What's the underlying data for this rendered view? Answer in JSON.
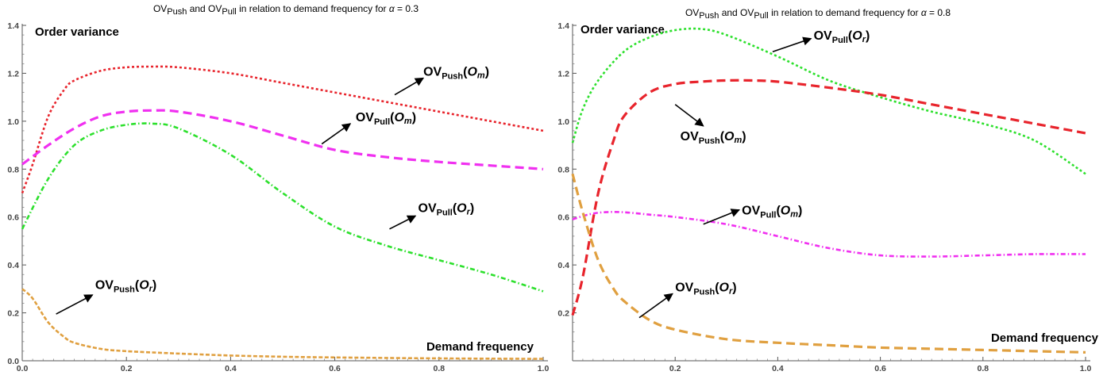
{
  "chart_data": [
    {
      "type": "line",
      "title_parts": [
        "OV",
        "Push",
        " and OV",
        "Pull",
        " in relation to demand frequency for ",
        "α",
        " = 0.3"
      ],
      "xlabel": "Demand frequency",
      "ylabel": "Order variance",
      "xlim": [
        0,
        1.0
      ],
      "ylim": [
        0,
        1.4
      ],
      "xticks": [
        "0.0",
        "0.2",
        "0.4",
        "0.6",
        "0.8",
        "1.0"
      ],
      "yticks": [
        "0.0",
        "0.2",
        "0.4",
        "0.6",
        "0.8",
        "1.0",
        "1.2",
        "1.4"
      ],
      "series": [
        {
          "name": "OVPush(Om)",
          "name_main": "OV",
          "name_sub": "Push",
          "name_arg": "O",
          "name_argsub": "m",
          "color": "#e8242c",
          "dash": "3,3",
          "x": [
            0,
            0.02,
            0.05,
            0.08,
            0.1,
            0.15,
            0.2,
            0.25,
            0.3,
            0.4,
            0.5,
            0.6,
            0.7,
            0.8,
            0.9,
            1.0
          ],
          "y": [
            0.7,
            0.82,
            1.02,
            1.13,
            1.17,
            1.21,
            1.225,
            1.228,
            1.225,
            1.2,
            1.16,
            1.12,
            1.08,
            1.04,
            1.0,
            0.96
          ]
        },
        {
          "name": "OVPull(Om)",
          "name_main": "OV",
          "name_sub": "Pull",
          "name_arg": "O",
          "name_argsub": "m",
          "color": "#f030f0",
          "dash": "11,6",
          "x": [
            0,
            0.05,
            0.1,
            0.15,
            0.2,
            0.25,
            0.3,
            0.4,
            0.5,
            0.6,
            0.7,
            0.8,
            0.9,
            1.0
          ],
          "y": [
            0.82,
            0.9,
            0.97,
            1.02,
            1.04,
            1.045,
            1.04,
            1.0,
            0.94,
            0.88,
            0.85,
            0.83,
            0.815,
            0.8
          ]
        },
        {
          "name": "OVPull(Or)",
          "name_main": "OV",
          "name_sub": "Pull",
          "name_arg": "O",
          "name_argsub": "r",
          "color": "#2de02d",
          "dash": "6,3,1.5,3",
          "x": [
            0,
            0.05,
            0.1,
            0.15,
            0.2,
            0.25,
            0.3,
            0.4,
            0.5,
            0.6,
            0.7,
            0.8,
            0.9,
            1.0
          ],
          "y": [
            0.55,
            0.76,
            0.9,
            0.96,
            0.985,
            0.99,
            0.97,
            0.86,
            0.7,
            0.56,
            0.48,
            0.42,
            0.36,
            0.29
          ]
        },
        {
          "name": "OVPush(Or)",
          "name_main": "OV",
          "name_sub": "Push",
          "name_arg": "O",
          "name_argsub": "r",
          "color": "#e0a040",
          "dash": "5,2.5",
          "x": [
            0,
            0.02,
            0.05,
            0.08,
            0.1,
            0.15,
            0.2,
            0.3,
            0.4,
            0.5,
            0.6,
            0.8,
            1.0
          ],
          "y": [
            0.3,
            0.26,
            0.16,
            0.1,
            0.075,
            0.05,
            0.04,
            0.03,
            0.022,
            0.017,
            0.014,
            0.01,
            0.008
          ]
        }
      ],
      "annotations": [
        {
          "series": 0,
          "tx": 0.77,
          "ty": 1.19,
          "ax": 0.77,
          "ay": 1.18,
          "hx": 0.715,
          "hy": 1.11
        },
        {
          "series": 1,
          "tx": 0.64,
          "ty": 1.0,
          "ax": 0.63,
          "ay": 0.99,
          "hx": 0.575,
          "hy": 0.905
        },
        {
          "series": 2,
          "tx": 0.76,
          "ty": 0.62,
          "ax": 0.755,
          "ay": 0.605,
          "hx": 0.705,
          "hy": 0.55
        },
        {
          "series": 3,
          "tx": 0.14,
          "ty": 0.3,
          "ax": 0.135,
          "ay": 0.275,
          "hx": 0.065,
          "hy": 0.195
        }
      ]
    },
    {
      "type": "line",
      "title_parts": [
        "OV",
        "Push",
        " and OV",
        "Pull",
        " in relation to demand frequency for ",
        "α",
        " = 0.8"
      ],
      "xlabel": "Demand frequency",
      "ylabel": "Order variance",
      "xlim": [
        0,
        1.0
      ],
      "ylim": [
        0,
        1.4
      ],
      "xticks": [
        "0.2",
        "0.4",
        "0.6",
        "0.8",
        "1.0"
      ],
      "yticks": [
        "0.2",
        "0.4",
        "0.6",
        "0.8",
        "1.0",
        "1.2",
        "1.4"
      ],
      "series": [
        {
          "name": "OVPull(Or)",
          "name_main": "OV",
          "name_sub": "Pull",
          "name_arg": "O",
          "name_argsub": "r",
          "color": "#2de02d",
          "dash": "3,3",
          "x": [
            0,
            0.02,
            0.05,
            0.1,
            0.15,
            0.2,
            0.25,
            0.3,
            0.4,
            0.5,
            0.6,
            0.7,
            0.8,
            0.9,
            1.0
          ],
          "y": [
            0.91,
            1.05,
            1.17,
            1.29,
            1.35,
            1.38,
            1.385,
            1.36,
            1.27,
            1.17,
            1.1,
            1.04,
            0.99,
            0.92,
            0.78
          ]
        },
        {
          "name": "OVPush(Om)",
          "name_main": "OV",
          "name_sub": "Push",
          "name_arg": "O",
          "name_argsub": "m",
          "color": "#e8242c",
          "dash": "11,6",
          "x": [
            0,
            0.02,
            0.05,
            0.08,
            0.1,
            0.15,
            0.2,
            0.25,
            0.3,
            0.35,
            0.4,
            0.5,
            0.6,
            0.7,
            0.8,
            0.9,
            1.0
          ],
          "y": [
            0.19,
            0.35,
            0.7,
            0.92,
            1.02,
            1.12,
            1.155,
            1.165,
            1.17,
            1.17,
            1.165,
            1.14,
            1.11,
            1.07,
            1.03,
            0.99,
            0.95
          ]
        },
        {
          "name": "OVPull(Om)",
          "name_main": "OV",
          "name_sub": "Pull",
          "name_arg": "O",
          "name_argsub": "m",
          "color": "#f030f0",
          "dash": "6,3,1.5,3",
          "x": [
            0,
            0.03,
            0.06,
            0.1,
            0.15,
            0.2,
            0.3,
            0.4,
            0.5,
            0.6,
            0.7,
            0.8,
            0.9,
            1.0
          ],
          "y": [
            0.59,
            0.61,
            0.62,
            0.62,
            0.61,
            0.6,
            0.57,
            0.52,
            0.47,
            0.44,
            0.435,
            0.44,
            0.445,
            0.445
          ]
        },
        {
          "name": "OVPush(Or)",
          "name_main": "OV",
          "name_sub": "Push",
          "name_arg": "O",
          "name_argsub": "r",
          "color": "#e0a040",
          "dash": "11,6",
          "x": [
            0,
            0.02,
            0.05,
            0.08,
            0.1,
            0.15,
            0.2,
            0.3,
            0.4,
            0.5,
            0.6,
            0.7,
            0.8,
            0.9,
            1.0
          ],
          "y": [
            0.78,
            0.62,
            0.42,
            0.3,
            0.25,
            0.17,
            0.13,
            0.09,
            0.075,
            0.065,
            0.055,
            0.05,
            0.045,
            0.04,
            0.035
          ]
        }
      ],
      "annotations": [
        {
          "series": 0,
          "tx": 0.47,
          "ty": 1.34,
          "ax": 0.465,
          "ay": 1.345,
          "hx": 0.39,
          "hy": 1.29
        },
        {
          "series": 1,
          "tx": 0.21,
          "ty": 0.92,
          "ax": 0.255,
          "ay": 0.98,
          "hx": 0.2,
          "hy": 1.07
        },
        {
          "series": 2,
          "tx": 0.33,
          "ty": 0.61,
          "ax": 0.325,
          "ay": 0.63,
          "hx": 0.255,
          "hy": 0.57
        },
        {
          "series": 3,
          "tx": 0.2,
          "ty": 0.29,
          "ax": 0.195,
          "ay": 0.28,
          "hx": 0.13,
          "hy": 0.18
        }
      ]
    }
  ]
}
